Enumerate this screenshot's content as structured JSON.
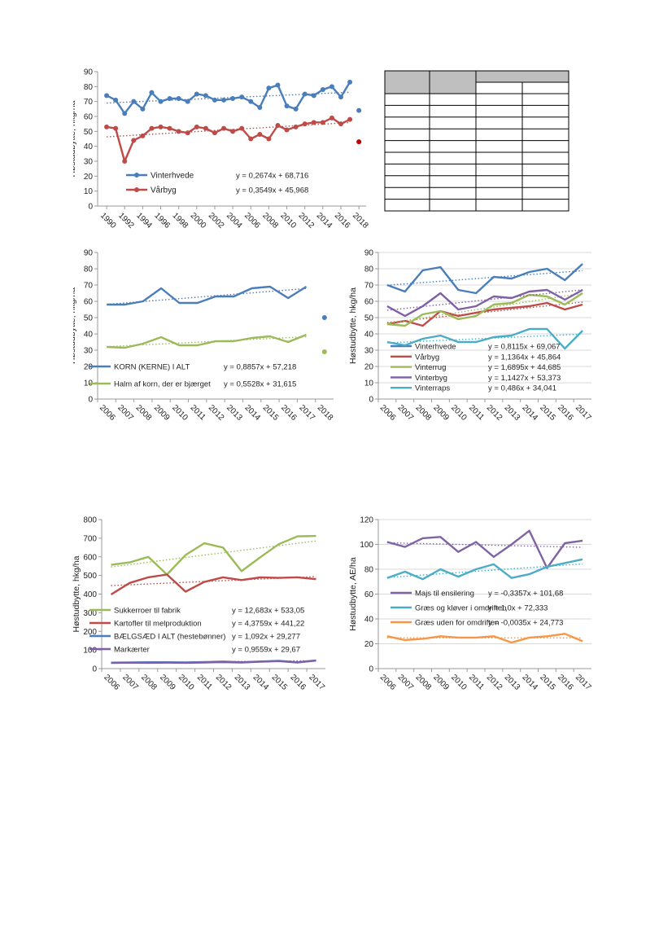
{
  "page": {
    "background": "#ffffff"
  },
  "charts": [
    {
      "id": "c1",
      "type": "line",
      "ylabel": "Høstudbytte, hkg/ha",
      "ylim": [
        0,
        90
      ],
      "yticks": [
        0,
        10,
        20,
        30,
        40,
        50,
        60,
        70,
        80,
        90
      ],
      "xaxis": {
        "kind": "numeric",
        "min": 1989,
        "max": 2018.8,
        "ticks": [
          "1990",
          "1992",
          "1994",
          "1996",
          "1998",
          "2000",
          "2002",
          "2004",
          "2006",
          "2008",
          "2010",
          "2012",
          "2014",
          "2016",
          "2018"
        ],
        "tickStart": 1990,
        "tickStep": 2
      },
      "grid": false,
      "series": [
        {
          "name": "Vinterhvede",
          "color": "#4a7ebb",
          "markers": true,
          "x": [
            1990,
            1991,
            1992,
            1993,
            1994,
            1995,
            1996,
            1997,
            1998,
            1999,
            2000,
            2001,
            2002,
            2003,
            2004,
            2005,
            2006,
            2007,
            2008,
            2009,
            2010,
            2011,
            2012,
            2013,
            2014,
            2015,
            2016,
            2017
          ],
          "y": [
            74,
            71,
            62,
            70,
            65,
            76,
            70,
            72,
            72,
            70,
            75,
            74,
            71,
            71,
            72,
            73,
            70,
            66,
            79,
            81,
            67,
            65,
            75,
            74,
            78,
            80,
            73,
            83
          ],
          "trend": {
            "slope": 0.2674,
            "intercept": 68.716
          },
          "equation": "y = 0,2674x + 68,716",
          "extra_point": {
            "x": 2018,
            "y": 64
          }
        },
        {
          "name": "Vårbyg",
          "color": "#be4b48",
          "markers": true,
          "x": [
            1990,
            1991,
            1992,
            1993,
            1994,
            1995,
            1996,
            1997,
            1998,
            1999,
            2000,
            2001,
            2002,
            2003,
            2004,
            2005,
            2006,
            2007,
            2008,
            2009,
            2010,
            2011,
            2012,
            2013,
            2014,
            2015,
            2016,
            2017
          ],
          "y": [
            53,
            52,
            30,
            44,
            47,
            52,
            53,
            52,
            50,
            49,
            53,
            52,
            49,
            52,
            50,
            52,
            45,
            48,
            45,
            54,
            51,
            53,
            55,
            56,
            56,
            59,
            55,
            58
          ],
          "trend": {
            "slope": 0.3549,
            "intercept": 45.968
          },
          "equation": "y = 0,3549x + 45,968",
          "extra_point": {
            "x": 2018,
            "y": 43
          },
          "extra_color": "#c00000"
        }
      ]
    },
    {
      "id": "c2",
      "type": "line",
      "ylabel": "Høstudbytte, hkg/ha",
      "ylim": [
        0,
        90
      ],
      "yticks": [
        0,
        10,
        20,
        30,
        40,
        50,
        60,
        70,
        80,
        90
      ],
      "xaxis": {
        "kind": "category",
        "categories": [
          "2006",
          "2007",
          "2008",
          "2009",
          "2010",
          "2011",
          "2012",
          "2013",
          "2014",
          "2015",
          "2016",
          "2017",
          "2018"
        ]
      },
      "grid": false,
      "series": [
        {
          "name": "KORN (KERNE) I ALT",
          "color": "#4a7ebb",
          "values": [
            58,
            58,
            60,
            68,
            59,
            59,
            63,
            63,
            68,
            69,
            62,
            69
          ],
          "trend": {
            "slope": 0.8857,
            "intercept": 57.218
          },
          "equation": "y = 0,8857x + 57,218",
          "extra_point": {
            "index": 12,
            "y": 50
          }
        },
        {
          "name": "Halm af korn, der er bjærget",
          "color": "#9bbb59",
          "values": [
            32,
            31.5,
            34,
            38,
            33,
            33,
            35.5,
            35.5,
            37.5,
            38.5,
            35,
            39.5
          ],
          "trend": {
            "slope": 0.5528,
            "intercept": 31.615
          },
          "equation": "y = 0,5528x + 31,615",
          "extra_point": {
            "index": 12,
            "y": 29
          }
        }
      ]
    },
    {
      "id": "c3",
      "type": "line",
      "ylabel": "Høstudbytte, hkg/ha",
      "ylim": [
        0,
        90
      ],
      "yticks": [
        0,
        10,
        20,
        30,
        40,
        50,
        60,
        70,
        80,
        90
      ],
      "xaxis": {
        "kind": "category",
        "categories": [
          "2006",
          "2007",
          "2008",
          "2009",
          "2010",
          "2011",
          "2012",
          "2013",
          "2014",
          "2015",
          "2016",
          "2017"
        ]
      },
      "grid": true,
      "series": [
        {
          "name": "Vinterhvede",
          "color": "#4a7ebb",
          "values": [
            70,
            66,
            79,
            81,
            67,
            65,
            75,
            74,
            78,
            80,
            73,
            83
          ],
          "trend": {
            "slope": 0.8115,
            "intercept": 69.067
          },
          "equation": "y = 0,8115x + 69,067"
        },
        {
          "name": "Vårbyg",
          "color": "#be4b48",
          "values": [
            46,
            48,
            45,
            54,
            51,
            53,
            55,
            56,
            57,
            59,
            55,
            58
          ],
          "trend": {
            "slope": 1.1364,
            "intercept": 45.864
          },
          "equation": "y = 1,1364x + 45,864"
        },
        {
          "name": "Vinterrug",
          "color": "#9bbb59",
          "values": [
            46,
            45,
            52,
            54,
            49,
            51,
            58,
            59,
            64,
            63,
            58,
            65
          ],
          "trend": {
            "slope": 1.6895,
            "intercept": 44.685
          },
          "equation": "y = 1,6895x + 44,685"
        },
        {
          "name": "Vinterbyg",
          "color": "#7f5fa6",
          "values": [
            57,
            51,
            57,
            65,
            55,
            57,
            63,
            62,
            66,
            67,
            61,
            67
          ],
          "trend": {
            "slope": 1.1427,
            "intercept": 53.373
          },
          "equation": "y = 1,1427x + 53,373"
        },
        {
          "name": "Vinterraps",
          "color": "#4bacc6",
          "values": [
            35,
            33,
            37,
            39,
            35,
            35,
            38,
            39,
            43,
            43,
            31,
            42
          ],
          "trend": {
            "slope": 0.486,
            "intercept": 34.041
          },
          "equation": "y = 0,486x + 34,041"
        }
      ]
    },
    {
      "id": "c4",
      "type": "line",
      "ylabel": "Høstudbytte, hkg/ha",
      "ylim": [
        0,
        800
      ],
      "yticks": [
        0,
        100,
        200,
        300,
        400,
        500,
        600,
        700,
        800
      ],
      "xaxis": {
        "kind": "category",
        "categories": [
          "2006",
          "2007",
          "2008",
          "2009",
          "2010",
          "2011",
          "2012",
          "2013",
          "2014",
          "2015",
          "2016",
          "2017"
        ]
      },
      "grid": false,
      "series": [
        {
          "name": "Sukkerroer til fabrik",
          "color": "#9bbb59",
          "values": [
            557,
            570,
            600,
            505,
            610,
            673,
            650,
            523,
            597,
            668,
            710,
            712
          ],
          "trend": {
            "slope": 12.683,
            "intercept": 533.05
          },
          "equation": "y = 12,683x + 533,05"
        },
        {
          "name": "Kartofler til melproduktion",
          "color": "#be4b48",
          "values": [
            398,
            460,
            490,
            505,
            413,
            465,
            490,
            475,
            490,
            487,
            490,
            480
          ],
          "trend": {
            "slope": 4.3759,
            "intercept": 441.22
          },
          "equation": "y = 4,3759x + 441,22"
        },
        {
          "name": "BÆLGSÆD I ALT (hestebønner)",
          "color": "#4a7ebb",
          "values": [
            32,
            33,
            34,
            34,
            33,
            35,
            38,
            34,
            38,
            42,
            34,
            43
          ],
          "trend": {
            "slope": 1.092,
            "intercept": 29.277
          },
          "equation": "y = 1,092x + 29,277"
        },
        {
          "name": "Markærter",
          "color": "#7f5fa6",
          "values": [
            30,
            32,
            31,
            32,
            31,
            33,
            35,
            33,
            37,
            40,
            33,
            44
          ],
          "trend": {
            "slope": 0.9559,
            "intercept": 29.67
          },
          "equation": "y = 0,9559x + 29,67"
        }
      ]
    },
    {
      "id": "c5",
      "type": "line",
      "ylabel": "Høstudbytte, AE/ha",
      "ylim": [
        0,
        120
      ],
      "yticks": [
        0,
        20,
        40,
        60,
        80,
        100,
        120
      ],
      "xaxis": {
        "kind": "category",
        "categories": [
          "2006",
          "2007",
          "2008",
          "2009",
          "2010",
          "2011",
          "2012",
          "2013",
          "2014",
          "2015",
          "2016",
          "2017"
        ]
      },
      "grid": true,
      "series": [
        {
          "name": "Majs til ensilering",
          "color": "#8064a2",
          "values": [
            102,
            98,
            105,
            106,
            94,
            102,
            90,
            100,
            111,
            81,
            101,
            103
          ],
          "trend": {
            "slope": -0.3357,
            "intercept": 101.68
          },
          "equation": "y = -0,3357x + 101,68"
        },
        {
          "name": "Græs og kløver i omdriften",
          "color": "#4bacc6",
          "values": [
            73,
            78,
            72,
            80,
            74,
            80,
            84,
            73,
            76,
            82,
            85,
            88
          ],
          "trend": {
            "slope": 1.0,
            "intercept": 72.333
          },
          "equation": "y = 1,0x + 72,333"
        },
        {
          "name": "Græs uden for omdriften",
          "color": "#f79646",
          "values": [
            26,
            23,
            24,
            26,
            25,
            25,
            26,
            21,
            25,
            26,
            28,
            22
          ],
          "trend": {
            "slope": -0.0035,
            "intercept": 24.773
          },
          "equation": "y = -0,0035x + 24,773"
        }
      ]
    }
  ],
  "table": {
    "header_row1": [
      "",
      "",
      "",
      ""
    ],
    "header_row2": [
      "",
      ""
    ],
    "body_rows": 10,
    "body_cols": 4
  }
}
